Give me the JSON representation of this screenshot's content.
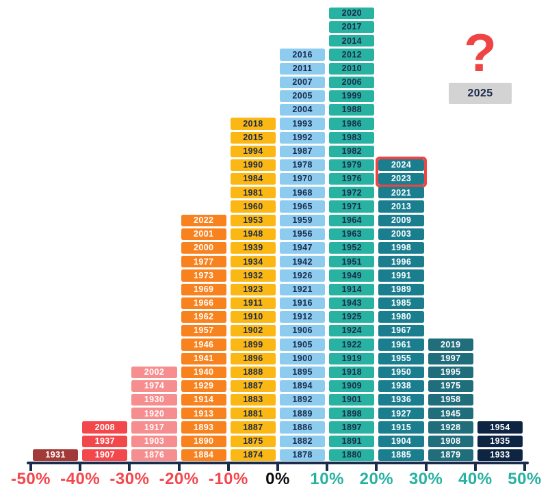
{
  "chart_data": {
    "type": "histogram",
    "title": "",
    "description": "Yearly stock market returns by year, bucketed into 10% total-return ranges; each cell is one year stacked in its return bucket",
    "x_axis": {
      "line_color": "#1B2B4B",
      "labels": [
        {
          "text": "-50%",
          "color": "#F3474C"
        },
        {
          "text": "-40%",
          "color": "#F3474C"
        },
        {
          "text": "-30%",
          "color": "#F3474C"
        },
        {
          "text": "-20%",
          "color": "#F3474C"
        },
        {
          "text": "-10%",
          "color": "#F3474C"
        },
        {
          "text": "0%",
          "color": "#0B0B0B"
        },
        {
          "text": "10%",
          "color": "#27B2A0"
        },
        {
          "text": "20%",
          "color": "#27B2A0"
        },
        {
          "text": "30%",
          "color": "#27B2A0"
        },
        {
          "text": "40%",
          "color": "#27B2A0"
        },
        {
          "text": "50%",
          "color": "#27B2A0"
        }
      ]
    },
    "columns": [
      {
        "range": "-50% to -40%",
        "color": "#A23B38",
        "text_color": "#FFFFFF",
        "years": [
          "1931"
        ]
      },
      {
        "range": "-40% to -30%",
        "color": "#F3484B",
        "text_color": "#FFFFFF",
        "years": [
          "2008",
          "1937",
          "1907"
        ]
      },
      {
        "range": "-30% to -20%",
        "color": "#F68D8E",
        "text_color": "#FFFFFF",
        "years": [
          "2002",
          "1974",
          "1930",
          "1920",
          "1917",
          "1903",
          "1876"
        ]
      },
      {
        "range": "-20% to -10%",
        "color": "#F8821E",
        "text_color": "#FFFFFF",
        "years": [
          "2022",
          "2001",
          "2000",
          "1977",
          "1973",
          "1969",
          "1966",
          "1962",
          "1957",
          "1946",
          "1941",
          "1940",
          "1929",
          "1914",
          "1913",
          "1893",
          "1890",
          "1884"
        ]
      },
      {
        "range": "-10% to 0%",
        "color": "#FBB713",
        "text_color": "#1B2B4B",
        "years": [
          "2018",
          "2015",
          "1994",
          "1990",
          "1984",
          "1981",
          "1960",
          "1953",
          "1948",
          "1939",
          "1934",
          "1932",
          "1923",
          "1911",
          "1910",
          "1902",
          "1899",
          "1896",
          "1888",
          "1887",
          "1883",
          "1881",
          "1887",
          "1875",
          "1874"
        ]
      },
      {
        "range": "0% to 10%",
        "color": "#8DCBEF",
        "text_color": "#1B2B4B",
        "years": [
          "2016",
          "2011",
          "2007",
          "2005",
          "2004",
          "1993",
          "1992",
          "1987",
          "1978",
          "1970",
          "1968",
          "1965",
          "1959",
          "1956",
          "1947",
          "1942",
          "1926",
          "1921",
          "1916",
          "1912",
          "1906",
          "1905",
          "1900",
          "1895",
          "1894",
          "1892",
          "1889",
          "1886",
          "1882",
          "1878"
        ]
      },
      {
        "range": "10% to 20%",
        "color": "#28B2A2",
        "text_color": "#1B2B4B",
        "years": [
          "2020",
          "2017",
          "2014",
          "2012",
          "2010",
          "2006",
          "1999",
          "1988",
          "1986",
          "1983",
          "1982",
          "1979",
          "1976",
          "1972",
          "1971",
          "1964",
          "1963",
          "1952",
          "1951",
          "1949",
          "1914",
          "1943",
          "1925",
          "1924",
          "1922",
          "1919",
          "1918",
          "1909",
          "1901",
          "1898",
          "1897",
          "1891",
          "1880"
        ]
      },
      {
        "range": "20% to 30%",
        "color": "#1A7E8F",
        "text_color": "#FFFFFF",
        "years": [
          "2024",
          "2023",
          "2021",
          "2013",
          "2009",
          "2003",
          "1998",
          "1996",
          "1991",
          "1989",
          "1985",
          "1980",
          "1967",
          "1961",
          "1955",
          "1950",
          "1938",
          "1936",
          "1927",
          "1915",
          "1904",
          "1885"
        ]
      },
      {
        "range": "30% to 40%",
        "color": "#206E7B",
        "text_color": "#FFFFFF",
        "years": [
          "2019",
          "1997",
          "1995",
          "1975",
          "1958",
          "1945",
          "1928",
          "1908",
          "1879"
        ]
      },
      {
        "range": "40% to 50%",
        "color": "#0E2443",
        "text_color": "#FFFFFF",
        "years": [
          "1954",
          "1935",
          "1933"
        ]
      }
    ],
    "highlight": {
      "years": [
        "2024",
        "2023"
      ],
      "color": "#EF4444"
    },
    "annotation": {
      "question_mark": "?",
      "question_mark_color": "#EF4444",
      "pending_year": "2025",
      "pending_year_bg": "#D3D3D3",
      "pending_year_text_color": "#1B2B4B"
    }
  }
}
